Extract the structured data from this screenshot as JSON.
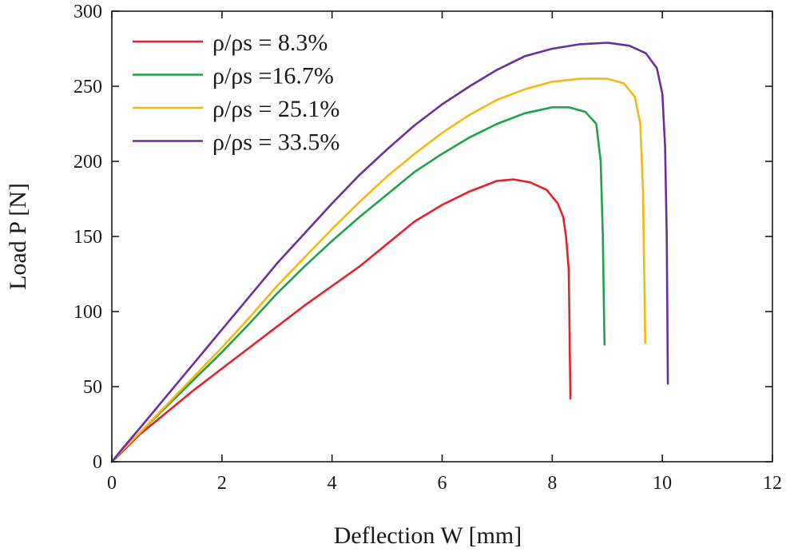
{
  "chart_data": {
    "type": "line",
    "title": "",
    "xlabel": "Deflection W [mm]",
    "ylabel": "Load P [N]",
    "xlim": [
      0,
      12
    ],
    "ylim": [
      0,
      300
    ],
    "xticks": [
      0,
      2,
      4,
      6,
      8,
      10,
      12
    ],
    "yticks": [
      0,
      50,
      100,
      150,
      200,
      250,
      300
    ],
    "xtick_labels": [
      "0",
      "2",
      "4",
      "6",
      "8",
      "10",
      "12"
    ],
    "ytick_labels": [
      "0",
      "50",
      "100",
      "150",
      "200",
      "250",
      "300"
    ],
    "grid": false,
    "legend_position": "top-left",
    "series": [
      {
        "name": "ρ/ρs = 8.3%",
        "color": "#e8202a",
        "points": [
          [
            0,
            0
          ],
          [
            0.2,
            7
          ],
          [
            0.5,
            18
          ],
          [
            1,
            33
          ],
          [
            1.5,
            48
          ],
          [
            2,
            62
          ],
          [
            2.5,
            76
          ],
          [
            3,
            90
          ],
          [
            3.5,
            104
          ],
          [
            4,
            117
          ],
          [
            4.5,
            130
          ],
          [
            5,
            145
          ],
          [
            5.5,
            160
          ],
          [
            6,
            171
          ],
          [
            6.5,
            180
          ],
          [
            7,
            187
          ],
          [
            7.3,
            188
          ],
          [
            7.6,
            186
          ],
          [
            7.9,
            181
          ],
          [
            8.1,
            172
          ],
          [
            8.2,
            163
          ],
          [
            8.25,
            150
          ],
          [
            8.3,
            128
          ],
          [
            8.31,
            100
          ],
          [
            8.32,
            70
          ],
          [
            8.33,
            42
          ]
        ]
      },
      {
        "name": "ρ/ρs =16.7%",
        "color": "#1ea24b",
        "points": [
          [
            0,
            0
          ],
          [
            0.2,
            8
          ],
          [
            0.5,
            19
          ],
          [
            1,
            37
          ],
          [
            1.5,
            55
          ],
          [
            2,
            73
          ],
          [
            2.5,
            92
          ],
          [
            3,
            112
          ],
          [
            3.5,
            130
          ],
          [
            4,
            147
          ],
          [
            4.5,
            163
          ],
          [
            5,
            178
          ],
          [
            5.5,
            193
          ],
          [
            6,
            205
          ],
          [
            6.5,
            216
          ],
          [
            7,
            225
          ],
          [
            7.5,
            232
          ],
          [
            8,
            236
          ],
          [
            8.3,
            236
          ],
          [
            8.6,
            233
          ],
          [
            8.8,
            225
          ],
          [
            8.88,
            200
          ],
          [
            8.92,
            150
          ],
          [
            8.94,
            100
          ],
          [
            8.95,
            78
          ]
        ]
      },
      {
        "name": "ρ/ρs = 25.1%",
        "color": "#f5b80f",
        "points": [
          [
            0,
            0
          ],
          [
            0.2,
            8
          ],
          [
            0.5,
            19
          ],
          [
            1,
            38
          ],
          [
            1.5,
            57
          ],
          [
            2,
            76
          ],
          [
            2.5,
            96
          ],
          [
            3,
            117
          ],
          [
            3.5,
            136
          ],
          [
            4,
            155
          ],
          [
            4.5,
            173
          ],
          [
            5,
            190
          ],
          [
            5.5,
            205
          ],
          [
            6,
            219
          ],
          [
            6.5,
            231
          ],
          [
            7,
            241
          ],
          [
            7.5,
            248
          ],
          [
            8,
            253
          ],
          [
            8.5,
            255
          ],
          [
            9,
            255
          ],
          [
            9.3,
            252
          ],
          [
            9.5,
            243
          ],
          [
            9.6,
            225
          ],
          [
            9.65,
            180
          ],
          [
            9.67,
            130
          ],
          [
            9.69,
            79
          ]
        ]
      },
      {
        "name": "ρ/ρs = 33.5%",
        "color": "#6a2f9c",
        "points": [
          [
            0,
            0
          ],
          [
            0.2,
            9
          ],
          [
            0.5,
            22
          ],
          [
            1,
            44
          ],
          [
            1.5,
            66
          ],
          [
            2,
            88
          ],
          [
            2.5,
            110
          ],
          [
            3,
            132
          ],
          [
            3.5,
            152
          ],
          [
            4,
            172
          ],
          [
            4.5,
            191
          ],
          [
            5,
            208
          ],
          [
            5.5,
            224
          ],
          [
            6,
            238
          ],
          [
            6.5,
            250
          ],
          [
            7,
            261
          ],
          [
            7.5,
            270
          ],
          [
            8,
            275
          ],
          [
            8.5,
            278
          ],
          [
            9,
            279
          ],
          [
            9.4,
            277
          ],
          [
            9.7,
            272
          ],
          [
            9.9,
            262
          ],
          [
            10,
            245
          ],
          [
            10.05,
            210
          ],
          [
            10.08,
            150
          ],
          [
            10.1,
            52
          ]
        ]
      }
    ]
  }
}
